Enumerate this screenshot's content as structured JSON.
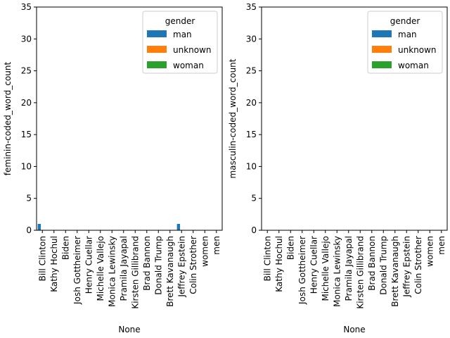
{
  "chart_data": [
    {
      "type": "bar",
      "xlabel": "None",
      "ylabel": "feminin-coded_word_count",
      "ylim": [
        0,
        35
      ],
      "yticks": [
        0,
        5,
        10,
        15,
        20,
        25,
        30,
        35
      ],
      "categories": [
        "Bill Clinton",
        "Kathy Hochul",
        "Biden",
        "Josh Gottheimer",
        "Henry Cuellar",
        "Michelle Vallejo",
        "Monica Lewinsky",
        "Pramila Jayapal",
        "Kirsten Gillibrand",
        "Brad Bannon",
        "Donald Trump",
        "Brett Kavanaugh",
        "Jeffrey Epstein",
        "Colin Strother",
        "women",
        "men"
      ],
      "legend": {
        "title": "gender",
        "placement": "upper-right"
      },
      "series": [
        {
          "name": "man",
          "color": "#1f77b4",
          "values": [
            1,
            0,
            0,
            0,
            0,
            0,
            0,
            0,
            0,
            0,
            0,
            0,
            1,
            0,
            0,
            0
          ]
        },
        {
          "name": "unknown",
          "color": "#ff7f0e",
          "values": [
            0,
            0,
            0,
            0,
            0,
            0,
            0,
            0,
            0,
            0,
            0,
            0,
            0,
            0,
            0,
            0
          ]
        },
        {
          "name": "woman",
          "color": "#2ca02c",
          "values": [
            0,
            0,
            0,
            0,
            0,
            0,
            0,
            0,
            0,
            0,
            0,
            0,
            0,
            0,
            0,
            0
          ]
        }
      ]
    },
    {
      "type": "bar",
      "xlabel": "None",
      "ylabel": "masculin-coded_word_count",
      "ylim": [
        0,
        35
      ],
      "yticks": [
        0,
        5,
        10,
        15,
        20,
        25,
        30,
        35
      ],
      "categories": [
        "Bill Clinton",
        "Kathy Hochul",
        "Biden",
        "Josh Gottheimer",
        "Henry Cuellar",
        "Michelle Vallejo",
        "Monica Lewinsky",
        "Pramila Jayapal",
        "Kirsten Gillibrand",
        "Brad Bannon",
        "Donald Trump",
        "Brett Kavanaugh",
        "Jeffrey Epstein",
        "Colin Strother",
        "women",
        "men"
      ],
      "legend": {
        "title": "gender",
        "placement": "upper-right"
      },
      "series": [
        {
          "name": "man",
          "color": "#1f77b4",
          "values": [
            0,
            0,
            0,
            0,
            0,
            0,
            0,
            0,
            0,
            0,
            0,
            0,
            0,
            0,
            0,
            0
          ]
        },
        {
          "name": "unknown",
          "color": "#ff7f0e",
          "values": [
            0,
            0,
            0,
            0,
            0,
            0,
            0,
            0,
            0,
            0,
            0,
            0,
            0,
            0,
            0,
            0
          ]
        },
        {
          "name": "woman",
          "color": "#2ca02c",
          "values": [
            0,
            0,
            0,
            0,
            0,
            0,
            0,
            0,
            0,
            0,
            0,
            0,
            0,
            0,
            0,
            0
          ]
        }
      ]
    }
  ]
}
